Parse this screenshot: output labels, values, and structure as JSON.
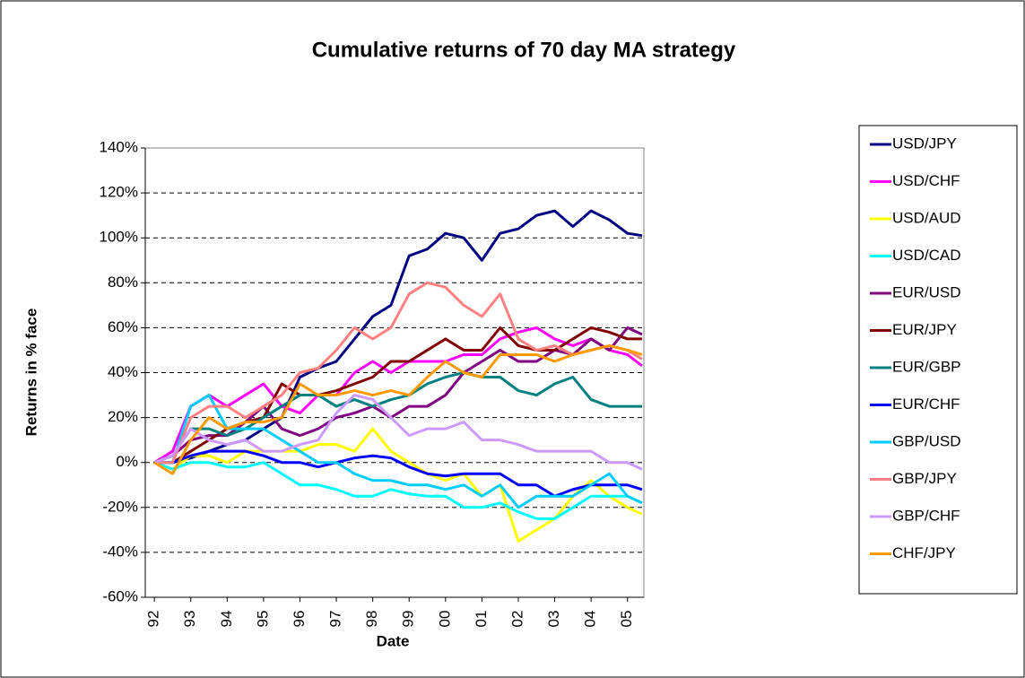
{
  "chart_data": {
    "type": "line",
    "title": "Cumulative returns of 70 day MA strategy",
    "xlabel": "Date",
    "ylabel": "Returns in % face",
    "x": [
      1992.0,
      1992.5,
      1993.0,
      1993.5,
      1994.0,
      1994.5,
      1995.0,
      1995.5,
      1996.0,
      1996.5,
      1997.0,
      1997.5,
      1998.0,
      1998.5,
      1999.0,
      1999.5,
      2000.0,
      2000.5,
      2001.0,
      2001.5,
      2002.0,
      2002.5,
      2003.0,
      2003.5,
      2004.0,
      2004.5,
      2005.0,
      2005.4
    ],
    "series": [
      {
        "name": "USD/JPY",
        "color": "#000080",
        "values": [
          0,
          0,
          2,
          5,
          8,
          10,
          15,
          20,
          38,
          42,
          45,
          55,
          65,
          70,
          92,
          95,
          102,
          100,
          90,
          102,
          104,
          110,
          112,
          105,
          112,
          108,
          102,
          101
        ]
      },
      {
        "name": "USD/CHF",
        "color": "#ff00ff",
        "values": [
          0,
          5,
          25,
          30,
          25,
          30,
          35,
          25,
          22,
          30,
          30,
          40,
          45,
          40,
          45,
          45,
          45,
          48,
          48,
          55,
          58,
          60,
          55,
          52,
          55,
          50,
          48,
          43
        ]
      },
      {
        "name": "USD/AUD",
        "color": "#ffff00",
        "values": [
          0,
          -3,
          3,
          3,
          0,
          5,
          5,
          5,
          5,
          8,
          8,
          5,
          15,
          5,
          0,
          -5,
          -8,
          -5,
          -15,
          -10,
          -35,
          -30,
          -25,
          -15,
          -8,
          -15,
          -20,
          -23
        ]
      },
      {
        "name": "USD/CAD",
        "color": "#00ffff",
        "values": [
          0,
          -3,
          0,
          0,
          -2,
          -2,
          0,
          -5,
          -10,
          -10,
          -12,
          -15,
          -15,
          -12,
          -14,
          -15,
          -15,
          -20,
          -20,
          -18,
          -22,
          -25,
          -25,
          -20,
          -15,
          -15,
          -15,
          -18
        ]
      },
      {
        "name": "EUR/USD",
        "color": "#800080",
        "values": [
          0,
          3,
          10,
          12,
          12,
          18,
          25,
          15,
          12,
          15,
          20,
          22,
          25,
          20,
          25,
          25,
          30,
          40,
          45,
          50,
          45,
          45,
          50,
          48,
          55,
          50,
          60,
          57
        ]
      },
      {
        "name": "EUR/JPY",
        "color": "#800000",
        "values": [
          0,
          0,
          5,
          10,
          15,
          18,
          20,
          35,
          30,
          30,
          32,
          35,
          38,
          45,
          45,
          50,
          55,
          50,
          50,
          60,
          52,
          50,
          50,
          55,
          60,
          58,
          55,
          55
        ]
      },
      {
        "name": "EUR/GBP",
        "color": "#008080",
        "values": [
          0,
          3,
          15,
          15,
          12,
          15,
          20,
          25,
          30,
          30,
          25,
          28,
          25,
          28,
          30,
          35,
          38,
          40,
          38,
          38,
          32,
          30,
          35,
          38,
          28,
          25,
          25,
          25
        ]
      },
      {
        "name": "EUR/CHF",
        "color": "#0000ff",
        "values": [
          0,
          0,
          3,
          5,
          5,
          5,
          3,
          0,
          0,
          -2,
          0,
          2,
          3,
          2,
          -2,
          -5,
          -6,
          -5,
          -5,
          -5,
          -10,
          -10,
          -15,
          -12,
          -10,
          -10,
          -10,
          -12
        ]
      },
      {
        "name": "GBP/USD",
        "color": "#00ccff",
        "values": [
          0,
          0,
          25,
          30,
          15,
          15,
          15,
          10,
          5,
          0,
          0,
          -5,
          -8,
          -8,
          -10,
          -10,
          -12,
          -10,
          -15,
          -10,
          -20,
          -15,
          -15,
          -15,
          -10,
          -5,
          -15,
          -18
        ]
      },
      {
        "name": "GBP/JPY",
        "color": "#ff8080",
        "values": [
          0,
          0,
          20,
          25,
          25,
          20,
          25,
          30,
          40,
          42,
          50,
          60,
          55,
          60,
          75,
          80,
          78,
          70,
          65,
          75,
          55,
          50,
          52,
          48,
          50,
          52,
          50,
          46
        ]
      },
      {
        "name": "GBP/CHF",
        "color": "#cc99ff",
        "values": [
          0,
          3,
          15,
          10,
          8,
          10,
          5,
          5,
          8,
          10,
          22,
          30,
          28,
          20,
          12,
          15,
          15,
          18,
          10,
          10,
          8,
          5,
          5,
          5,
          5,
          0,
          0,
          -3
        ]
      },
      {
        "name": "CHF/JPY",
        "color": "#ff9900",
        "values": [
          0,
          -5,
          10,
          20,
          15,
          18,
          18,
          20,
          35,
          30,
          30,
          32,
          30,
          32,
          30,
          38,
          45,
          40,
          38,
          48,
          48,
          48,
          45,
          48,
          50,
          52,
          50,
          48
        ]
      }
    ],
    "xlim": [
      1991.75,
      2005.45
    ],
    "xticks": [
      {
        "value": 1992,
        "label": "92"
      },
      {
        "value": 1993,
        "label": "93"
      },
      {
        "value": 1994,
        "label": "94"
      },
      {
        "value": 1995,
        "label": "95"
      },
      {
        "value": 1996,
        "label": "96"
      },
      {
        "value": 1997,
        "label": "97"
      },
      {
        "value": 1998,
        "label": "98"
      },
      {
        "value": 1999,
        "label": "99"
      },
      {
        "value": 2000,
        "label": "00"
      },
      {
        "value": 2001,
        "label": "01"
      },
      {
        "value": 2002,
        "label": "02"
      },
      {
        "value": 2003,
        "label": "03"
      },
      {
        "value": 2004,
        "label": "04"
      },
      {
        "value": 2005,
        "label": "05"
      }
    ],
    "ylim": [
      -60,
      140
    ],
    "yticks": [
      {
        "value": -60,
        "label": "-60%"
      },
      {
        "value": -40,
        "label": "-40%"
      },
      {
        "value": -20,
        "label": "-20%"
      },
      {
        "value": 0,
        "label": "0%"
      },
      {
        "value": 20,
        "label": "20%"
      },
      {
        "value": 40,
        "label": "40%"
      },
      {
        "value": 60,
        "label": "60%"
      },
      {
        "value": 80,
        "label": "80%"
      },
      {
        "value": 100,
        "label": "100%"
      },
      {
        "value": 120,
        "label": "120%"
      },
      {
        "value": 140,
        "label": "140%"
      }
    ],
    "grid": true,
    "legend": "right"
  }
}
